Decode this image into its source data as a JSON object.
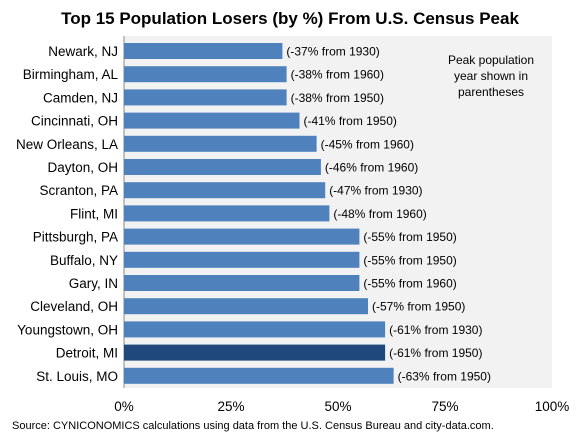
{
  "chart_data": {
    "type": "bar",
    "orientation": "horizontal",
    "title": "Top 15 Population Losers (by %) From U.S. Census Peak",
    "categories": [
      "Newark, NJ",
      "Birmingham, AL",
      "Camden, NJ",
      "Cincinnati, OH",
      "New Orleans, LA",
      "Dayton, OH",
      "Scranton, PA",
      "Flint, MI",
      "Pittsburgh, PA",
      "Buffalo, NY",
      "Gary, IN",
      "Cleveland, OH",
      "Youngstown, OH",
      "Detroit, MI",
      "St. Louis, MO"
    ],
    "values": [
      37,
      38,
      38,
      41,
      45,
      46,
      47,
      48,
      55,
      55,
      55,
      57,
      61,
      61,
      63
    ],
    "data_labels": [
      "(-37% from 1930)",
      "(-38% from 1960)",
      "(-38% from 1950)",
      "(-41% from 1950)",
      "(-45% from 1960)",
      "(-46% from 1960)",
      "(-47% from 1930)",
      "(-48% from 1960)",
      "(-55% from 1950)",
      "(-55% from 1950)",
      "(-55% from 1960)",
      "(-57% from 1950)",
      "(-61% from 1930)",
      "(-61% from 1950)",
      "(-63% from 1950)"
    ],
    "highlight_category": "Detroit, MI",
    "xlim": [
      0,
      100
    ],
    "xticks": [
      0,
      25,
      50,
      75,
      100
    ],
    "xtick_labels": [
      "0%",
      "25%",
      "50%",
      "75%",
      "100%"
    ],
    "grid": false,
    "note_lines": [
      "Peak population",
      "year shown in",
      "parentheses"
    ],
    "source": "Source: CYNICONOMICS calculations using data from the U.S. Census Bureau and city-data.com.",
    "colors": {
      "bar": "#4f81bd",
      "highlight": "#1f497d",
      "plot_background": "#f2f2f2"
    }
  }
}
